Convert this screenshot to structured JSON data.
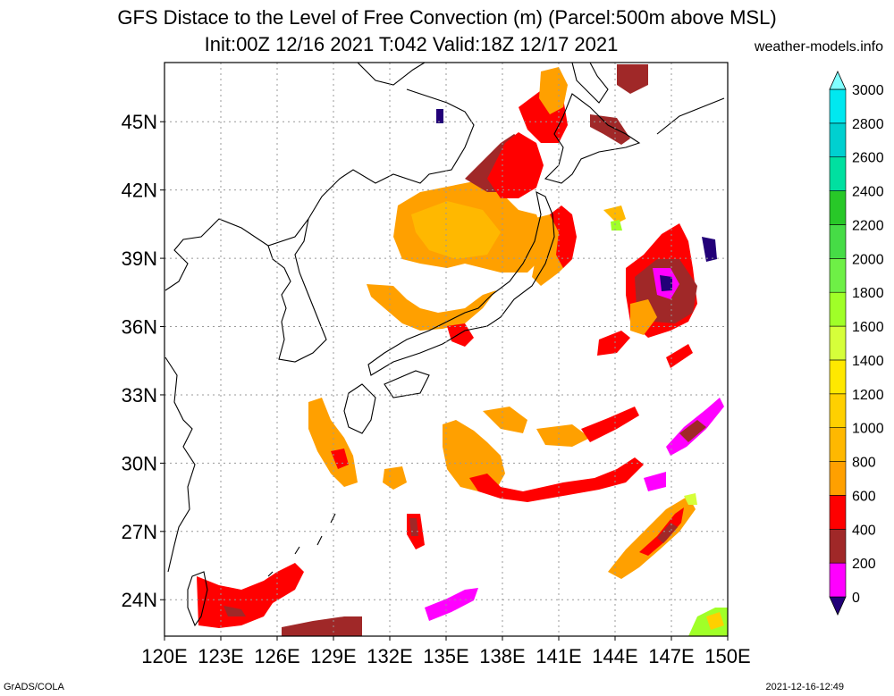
{
  "header": {
    "title": "GFS Distace to the Level of Free Convection (m) (Parcel:500m above MSL)",
    "subtitle": "Init:00Z 12/16 2021 T:042 Valid:18Z 12/17 2021",
    "site": "weather-models.info"
  },
  "footer": {
    "left": "GrADS/COLA",
    "right": "2021-12-16-12:49"
  },
  "map": {
    "lon_labels": [
      "120E",
      "123E",
      "126E",
      "129E",
      "132E",
      "135E",
      "138E",
      "141E",
      "144E",
      "147E",
      "150E"
    ],
    "lat_labels": [
      "24N",
      "27N",
      "30N",
      "33N",
      "36N",
      "39N",
      "42N",
      "45N"
    ],
    "lon_values": [
      120,
      123,
      126,
      129,
      132,
      135,
      138,
      141,
      144,
      147,
      150
    ],
    "lat_values": [
      24,
      27,
      30,
      33,
      36,
      39,
      42,
      45
    ],
    "lon_range": [
      120,
      150
    ],
    "lat_range": [
      22.4,
      47.6
    ],
    "grid": true
  },
  "colorbar": {
    "labels": [
      "0",
      "200",
      "400",
      "600",
      "800",
      "1000",
      "1200",
      "1400",
      "1600",
      "1800",
      "2000",
      "2200",
      "2400",
      "2600",
      "2800",
      "3000"
    ],
    "colors": [
      "#220078",
      "#ff00ff",
      "#a02828",
      "#ff0000",
      "#ffa000",
      "#ffb800",
      "#ffd000",
      "#ffe800",
      "#d6ff3a",
      "#a0ff28",
      "#6ef046",
      "#46dc46",
      "#28c828",
      "#00e0a0",
      "#00d0d0",
      "#00e8f0",
      "#80ffff"
    ]
  },
  "legend_colors": {
    "purple": "#220078",
    "magenta": "#ff00ff",
    "brown": "#a02828",
    "red": "#ff0000",
    "orange": "#ffa000",
    "gold": "#ffb800",
    "yellow": "#ffd000"
  }
}
